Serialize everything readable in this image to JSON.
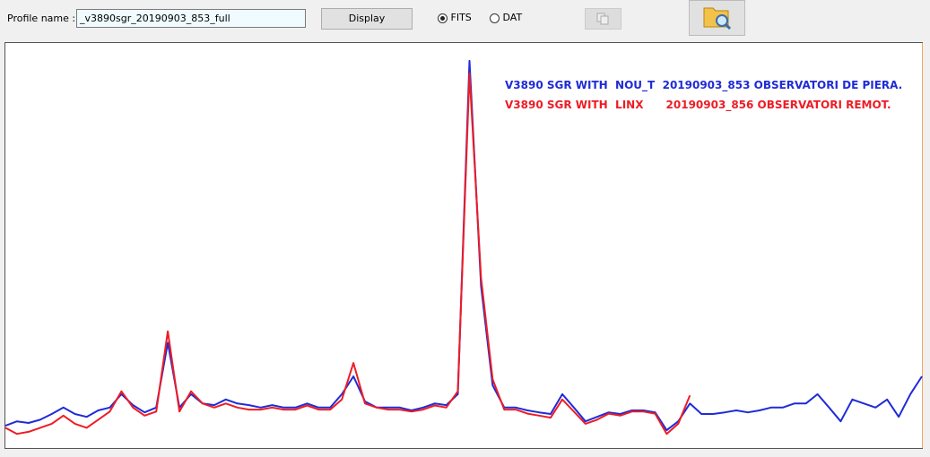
{
  "toolbar": {
    "profile_label": "Profile name :",
    "profile_value": "_v3890sgr_20190903_853_full",
    "display_button": "Display",
    "radio_fits": "FITS",
    "radio_dat": "DAT"
  },
  "chart_data": {
    "type": "line",
    "ylim": [
      0,
      100
    ],
    "series": [
      {
        "name": "V3890 SGR WITH  NOU_T  20190903_853 OBSERVATORI DE PIERA.",
        "color": "#1f2bd6",
        "values": [
          5.5,
          6.6,
          6.2,
          7,
          8.4,
          10,
          8.4,
          7.7,
          9.3,
          10,
          13.3,
          10.6,
          8.8,
          10,
          26,
          10,
          13.3,
          11,
          10.6,
          12,
          11,
          10.6,
          10,
          10.6,
          10,
          10,
          11,
          10,
          10,
          13.3,
          17.7,
          11.5,
          10,
          10,
          10,
          9.3,
          10,
          11,
          10.6,
          13.3,
          95.6,
          40,
          15.5,
          10,
          10,
          9.3,
          8.8,
          8.4,
          13.3,
          10,
          6.6,
          7.7,
          8.8,
          8.4,
          9.3,
          9.3,
          8.8,
          4.4,
          6.6,
          11,
          8.4,
          8.4,
          8.8,
          9.3,
          8.8,
          9.3,
          10,
          10,
          11,
          11,
          13.3,
          10,
          6.6,
          12,
          11,
          10,
          12,
          7.7,
          13.3,
          17.7
        ]
      },
      {
        "name": "V3890 SGR WITH  LINX      20190903_856 OBSERVATORI REMOT.",
        "color": "#ee1c25",
        "values": [
          5,
          3.5,
          4,
          5,
          6,
          8,
          6,
          5,
          7,
          9,
          14,
          10,
          8,
          9,
          28.8,
          9,
          14,
          11,
          10,
          11,
          10,
          9.5,
          9.5,
          10,
          9.5,
          9.5,
          10.5,
          9.5,
          9.5,
          12,
          21,
          11,
          10,
          9.5,
          9.5,
          9,
          9.5,
          10.5,
          10,
          14,
          92.5,
          42,
          17,
          9.5,
          9.5,
          8.5,
          8,
          7.5,
          12,
          9,
          6,
          7,
          8.5,
          8,
          9,
          9,
          8.5,
          3.5,
          6,
          13,
          null,
          null,
          null,
          null,
          null,
          null,
          null,
          null,
          null,
          null,
          null,
          null,
          null,
          null,
          null,
          null,
          null,
          null,
          null,
          null
        ]
      }
    ]
  }
}
